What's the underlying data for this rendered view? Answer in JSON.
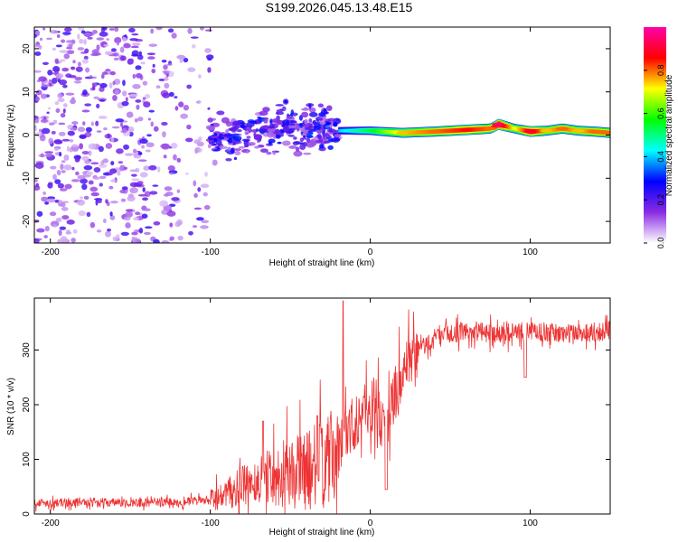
{
  "figure_title": "S199.2026.045.13.48.E15",
  "chart_data": [
    {
      "type": "heatmap",
      "title": "S199.2026.045.13.48.E15",
      "xlabel": "Height of straight line (km)",
      "ylabel": "Frequency (Hz)",
      "xlim": [
        -210,
        150
      ],
      "ylim": [
        -25,
        25
      ],
      "x_ticks": [
        -200,
        -100,
        0,
        100
      ],
      "x_tick_labels": [
        "-200",
        "-100",
        "0",
        "100"
      ],
      "y_ticks": [
        -20,
        -10,
        0,
        10,
        20
      ],
      "y_tick_labels": [
        "-20",
        "-10",
        "0",
        "10",
        "20"
      ],
      "colorbar": {
        "label": "Normalized spectral amplitude",
        "range": [
          0,
          1
        ],
        "ticks": [
          0.0,
          0.2,
          0.4,
          0.6,
          0.8
        ],
        "tick_labels": [
          "0.0",
          "0.2",
          "0.4",
          "0.6",
          "0.8"
        ],
        "colormap": [
          "#ffffff",
          "#8a2be2",
          "#0000ff",
          "#00ffff",
          "#00ff00",
          "#ffff00",
          "#ff0000",
          "#ff00aa"
        ]
      },
      "regions": [
        {
          "x_range": [
            -210,
            -100
          ],
          "freq_range": [
            -25,
            25
          ],
          "amplitude": "low",
          "pattern": "scattered noise"
        },
        {
          "x_range": [
            -100,
            -20
          ],
          "freq_range": [
            -7,
            8
          ],
          "amplitude": "low-to-medium",
          "pattern": "scattered clusters"
        },
        {
          "x_range": [
            -20,
            150
          ],
          "freq_range": [
            -1,
            2
          ],
          "amplitude": "high",
          "pattern": "narrow band near 1 Hz"
        }
      ],
      "ridge": {
        "x": [
          -20,
          0,
          20,
          40,
          60,
          75,
          80,
          90,
          100,
          110,
          120,
          130,
          140,
          150
        ],
        "freq": [
          1,
          1,
          0.5,
          0.8,
          1.2,
          1.5,
          2.5,
          1.5,
          0.8,
          1.0,
          1.5,
          1.0,
          0.8,
          0.5
        ],
        "amplitude": [
          0.4,
          0.55,
          0.75,
          0.8,
          0.85,
          0.8,
          0.95,
          0.7,
          0.9,
          0.75,
          0.8,
          0.75,
          0.8,
          0.8
        ]
      }
    },
    {
      "type": "line",
      "xlabel": "Height of straight line (km)",
      "ylabel": "SNR (10 * v/v)",
      "xlim": [
        -210,
        150
      ],
      "ylim": [
        0,
        395
      ],
      "x_ticks": [
        -200,
        -100,
        0,
        100
      ],
      "x_tick_labels": [
        "-200",
        "-100",
        "0",
        "100"
      ],
      "y_ticks": [
        0,
        100,
        200,
        300
      ],
      "y_tick_labels": [
        "0",
        "100",
        "200",
        "300"
      ],
      "series": [
        {
          "name": "SNR",
          "color": "#ee3333",
          "x": [
            -210,
            -180,
            -150,
            -120,
            -100,
            -90,
            -80,
            -70,
            -60,
            -50,
            -40,
            -30,
            -20,
            -15,
            -10,
            0,
            5,
            10,
            15,
            20,
            25,
            30,
            40,
            50,
            60,
            80,
            100,
            120,
            150
          ],
          "y": [
            20,
            22,
            20,
            22,
            25,
            35,
            50,
            60,
            70,
            75,
            80,
            90,
            110,
            150,
            170,
            200,
            190,
            150,
            220,
            250,
            270,
            300,
            320,
            330,
            335,
            330,
            335,
            330,
            335
          ],
          "peaks": [
            {
              "x": -17,
              "y": 390
            },
            {
              "x": -33,
              "y": 180
            },
            {
              "x": -67,
              "y": 170
            }
          ],
          "dips": [
            {
              "x": 10,
              "y": 45
            },
            {
              "x": 97,
              "y": 250
            }
          ]
        }
      ]
    }
  ]
}
